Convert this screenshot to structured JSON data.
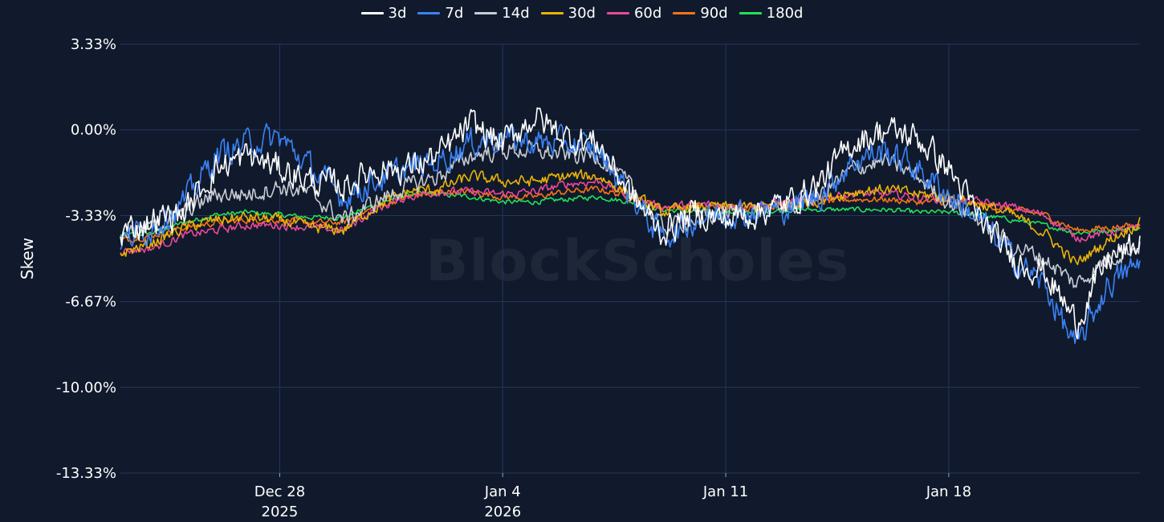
{
  "watermark": "BlockScholes",
  "chart_data": {
    "type": "line",
    "title": "",
    "xlabel": "",
    "ylabel": "Skew",
    "x_range": [
      "2025-12-23",
      "2026-01-24"
    ],
    "ylim": [
      -13.33,
      3.33
    ],
    "y_ticks": [
      3.33,
      0.0,
      -3.33,
      -6.67,
      -10.0,
      -13.33
    ],
    "y_tick_labels": [
      "3.33%",
      "0.00%",
      "-3.33%",
      "-6.67%",
      "-10.00%",
      "-13.33%"
    ],
    "x_ticks": [
      {
        "date": "2025-12-28",
        "label": "Dec 28",
        "sublabel": "2025"
      },
      {
        "date": "2026-01-04",
        "label": "Jan 4",
        "sublabel": "2026"
      },
      {
        "date": "2026-01-11",
        "label": "Jan 11",
        "sublabel": ""
      },
      {
        "date": "2026-01-18",
        "label": "Jan 18",
        "sublabel": ""
      }
    ],
    "grid": true,
    "legend_position": "top-center",
    "series": [
      {
        "name": "3d",
        "color": "#ffffff",
        "noise": 0.9,
        "points": [
          [
            "2025-12-23",
            -4.0
          ],
          [
            "2025-12-24",
            -3.5
          ],
          [
            "2025-12-25",
            -3.2
          ],
          [
            "2025-12-26",
            -1.5
          ],
          [
            "2025-12-27",
            -1.0
          ],
          [
            "2025-12-28",
            -1.5
          ],
          [
            "2025-12-29",
            -2.0
          ],
          [
            "2025-12-30",
            -2.2
          ],
          [
            "2025-12-31",
            -1.5
          ],
          [
            "2026-01-01",
            -1.5
          ],
          [
            "2026-01-02",
            -1.0
          ],
          [
            "2026-01-03",
            0.2
          ],
          [
            "2026-01-04",
            -0.5
          ],
          [
            "2026-01-05",
            0.5
          ],
          [
            "2026-01-06",
            -0.3
          ],
          [
            "2026-01-07",
            -0.5
          ],
          [
            "2026-01-08",
            -2.5
          ],
          [
            "2026-01-09",
            -4.0
          ],
          [
            "2026-01-10",
            -3.2
          ],
          [
            "2026-01-11",
            -3.5
          ],
          [
            "2026-01-12",
            -3.2
          ],
          [
            "2026-01-13",
            -2.8
          ],
          [
            "2026-01-14",
            -2.0
          ],
          [
            "2026-01-15",
            -0.5
          ],
          [
            "2026-01-16",
            0.0
          ],
          [
            "2026-01-17",
            -0.3
          ],
          [
            "2026-01-18",
            -1.5
          ],
          [
            "2026-01-19",
            -3.5
          ],
          [
            "2026-01-20",
            -5.0
          ],
          [
            "2026-01-21",
            -5.5
          ],
          [
            "2026-01-22",
            -7.5
          ],
          [
            "2026-01-23",
            -5.0
          ],
          [
            "2026-01-24",
            -4.5
          ]
        ]
      },
      {
        "name": "7d",
        "color": "#3b82f6",
        "noise": 0.85,
        "points": [
          [
            "2025-12-23",
            -4.3
          ],
          [
            "2025-12-24",
            -3.8
          ],
          [
            "2025-12-25",
            -2.8
          ],
          [
            "2025-12-26",
            -1.0
          ],
          [
            "2025-12-27",
            -0.5
          ],
          [
            "2025-12-28",
            -0.3
          ],
          [
            "2025-12-29",
            -1.5
          ],
          [
            "2025-12-30",
            -2.6
          ],
          [
            "2025-12-31",
            -2.0
          ],
          [
            "2026-01-01",
            -1.5
          ],
          [
            "2026-01-02",
            -1.2
          ],
          [
            "2026-01-03",
            -0.5
          ],
          [
            "2026-01-04",
            -0.3
          ],
          [
            "2026-01-05",
            -0.5
          ],
          [
            "2026-01-06",
            -0.5
          ],
          [
            "2026-01-07",
            -0.8
          ],
          [
            "2026-01-08",
            -2.5
          ],
          [
            "2026-01-09",
            -4.2
          ],
          [
            "2026-01-10",
            -3.5
          ],
          [
            "2026-01-11",
            -3.2
          ],
          [
            "2026-01-12",
            -3.2
          ],
          [
            "2026-01-13",
            -3.0
          ],
          [
            "2026-01-14",
            -2.5
          ],
          [
            "2026-01-15",
            -1.2
          ],
          [
            "2026-01-16",
            -0.8
          ],
          [
            "2026-01-17",
            -1.5
          ],
          [
            "2026-01-18",
            -2.5
          ],
          [
            "2026-01-19",
            -3.5
          ],
          [
            "2026-01-20",
            -5.0
          ],
          [
            "2026-01-21",
            -6.0
          ],
          [
            "2026-01-22",
            -8.5
          ],
          [
            "2026-01-23",
            -6.0
          ],
          [
            "2026-01-24",
            -5.2
          ]
        ]
      },
      {
        "name": "14d",
        "color": "#c8ccd4",
        "noise": 0.55,
        "points": [
          [
            "2025-12-23",
            -4.0
          ],
          [
            "2025-12-24",
            -3.8
          ],
          [
            "2025-12-25",
            -3.2
          ],
          [
            "2025-12-26",
            -2.5
          ],
          [
            "2025-12-27",
            -2.5
          ],
          [
            "2025-12-28",
            -2.2
          ],
          [
            "2025-12-29",
            -2.5
          ],
          [
            "2025-12-30",
            -3.5
          ],
          [
            "2025-12-31",
            -2.8
          ],
          [
            "2026-01-01",
            -2.2
          ],
          [
            "2026-01-02",
            -1.8
          ],
          [
            "2026-01-03",
            -1.0
          ],
          [
            "2026-01-04",
            -0.8
          ],
          [
            "2026-01-05",
            -0.8
          ],
          [
            "2026-01-06",
            -1.0
          ],
          [
            "2026-01-07",
            -1.0
          ],
          [
            "2026-01-08",
            -2.2
          ],
          [
            "2026-01-09",
            -3.8
          ],
          [
            "2026-01-10",
            -3.5
          ],
          [
            "2026-01-11",
            -3.2
          ],
          [
            "2026-01-12",
            -3.2
          ],
          [
            "2026-01-13",
            -3.0
          ],
          [
            "2026-01-14",
            -2.5
          ],
          [
            "2026-01-15",
            -1.5
          ],
          [
            "2026-01-16",
            -1.2
          ],
          [
            "2026-01-17",
            -1.8
          ],
          [
            "2026-01-18",
            -2.8
          ],
          [
            "2026-01-19",
            -3.5
          ],
          [
            "2026-01-20",
            -4.5
          ],
          [
            "2026-01-21",
            -5.0
          ],
          [
            "2026-01-22",
            -6.0
          ],
          [
            "2026-01-23",
            -5.0
          ],
          [
            "2026-01-24",
            -4.5
          ]
        ]
      },
      {
        "name": "30d",
        "color": "#eab308",
        "noise": 0.35,
        "points": [
          [
            "2025-12-23",
            -4.8
          ],
          [
            "2025-12-24",
            -4.4
          ],
          [
            "2025-12-25",
            -3.8
          ],
          [
            "2025-12-26",
            -3.5
          ],
          [
            "2025-12-27",
            -3.4
          ],
          [
            "2025-12-28",
            -3.5
          ],
          [
            "2025-12-29",
            -3.8
          ],
          [
            "2025-12-30",
            -3.9
          ],
          [
            "2025-12-31",
            -3.0
          ],
          [
            "2026-01-01",
            -2.4
          ],
          [
            "2026-01-02",
            -2.3
          ],
          [
            "2026-01-03",
            -1.8
          ],
          [
            "2026-01-04",
            -2.0
          ],
          [
            "2026-01-05",
            -2.0
          ],
          [
            "2026-01-06",
            -1.8
          ],
          [
            "2026-01-07",
            -1.8
          ],
          [
            "2026-01-08",
            -2.5
          ],
          [
            "2026-01-09",
            -3.2
          ],
          [
            "2026-01-10",
            -3.0
          ],
          [
            "2026-01-11",
            -3.0
          ],
          [
            "2026-01-12",
            -3.0
          ],
          [
            "2026-01-13",
            -2.9
          ],
          [
            "2026-01-14",
            -2.7
          ],
          [
            "2026-01-15",
            -2.4
          ],
          [
            "2026-01-16",
            -2.3
          ],
          [
            "2026-01-17",
            -2.5
          ],
          [
            "2026-01-18",
            -2.6
          ],
          [
            "2026-01-19",
            -2.9
          ],
          [
            "2026-01-20",
            -3.3
          ],
          [
            "2026-01-21",
            -4.0
          ],
          [
            "2026-01-22",
            -5.2
          ],
          [
            "2026-01-23",
            -4.3
          ],
          [
            "2026-01-24",
            -3.6
          ]
        ]
      },
      {
        "name": "60d",
        "color": "#ec4899",
        "noise": 0.25,
        "points": [
          [
            "2025-12-23",
            -4.7
          ],
          [
            "2025-12-24",
            -4.6
          ],
          [
            "2025-12-25",
            -4.1
          ],
          [
            "2025-12-26",
            -3.9
          ],
          [
            "2025-12-27",
            -3.7
          ],
          [
            "2025-12-28",
            -3.7
          ],
          [
            "2025-12-29",
            -3.8
          ],
          [
            "2025-12-30",
            -3.9
          ],
          [
            "2025-12-31",
            -3.1
          ],
          [
            "2026-01-01",
            -2.6
          ],
          [
            "2026-01-02",
            -2.4
          ],
          [
            "2026-01-03",
            -2.4
          ],
          [
            "2026-01-04",
            -2.5
          ],
          [
            "2026-01-05",
            -2.4
          ],
          [
            "2026-01-06",
            -2.1
          ],
          [
            "2026-01-07",
            -2.0
          ],
          [
            "2026-01-08",
            -2.6
          ],
          [
            "2026-01-09",
            -3.0
          ],
          [
            "2026-01-10",
            -2.9
          ],
          [
            "2026-01-11",
            -2.9
          ],
          [
            "2026-01-12",
            -2.9
          ],
          [
            "2026-01-13",
            -2.8
          ],
          [
            "2026-01-14",
            -2.6
          ],
          [
            "2026-01-15",
            -2.5
          ],
          [
            "2026-01-16",
            -2.5
          ],
          [
            "2026-01-17",
            -2.6
          ],
          [
            "2026-01-18",
            -2.7
          ],
          [
            "2026-01-19",
            -2.8
          ],
          [
            "2026-01-20",
            -3.0
          ],
          [
            "2026-01-21",
            -3.3
          ],
          [
            "2026-01-22",
            -4.2
          ],
          [
            "2026-01-23",
            -4.0
          ],
          [
            "2026-01-24",
            -3.8
          ]
        ]
      },
      {
        "name": "90d",
        "color": "#f97316",
        "noise": 0.2,
        "points": [
          [
            "2025-12-23",
            -4.3
          ],
          [
            "2025-12-24",
            -4.1
          ],
          [
            "2025-12-25",
            -3.8
          ],
          [
            "2025-12-26",
            -3.6
          ],
          [
            "2025-12-27",
            -3.5
          ],
          [
            "2025-12-28",
            -3.5
          ],
          [
            "2025-12-29",
            -3.6
          ],
          [
            "2025-12-30",
            -3.6
          ],
          [
            "2025-12-31",
            -3.0
          ],
          [
            "2026-01-01",
            -2.6
          ],
          [
            "2026-01-02",
            -2.4
          ],
          [
            "2026-01-03",
            -2.4
          ],
          [
            "2026-01-04",
            -2.6
          ],
          [
            "2026-01-05",
            -2.6
          ],
          [
            "2026-01-06",
            -2.4
          ],
          [
            "2026-01-07",
            -2.3
          ],
          [
            "2026-01-08",
            -2.6
          ],
          [
            "2026-01-09",
            -3.0
          ],
          [
            "2026-01-10",
            -3.0
          ],
          [
            "2026-01-11",
            -3.0
          ],
          [
            "2026-01-12",
            -3.0
          ],
          [
            "2026-01-13",
            -2.9
          ],
          [
            "2026-01-14",
            -2.8
          ],
          [
            "2026-01-15",
            -2.7
          ],
          [
            "2026-01-16",
            -2.7
          ],
          [
            "2026-01-17",
            -2.8
          ],
          [
            "2026-01-18",
            -2.8
          ],
          [
            "2026-01-19",
            -2.9
          ],
          [
            "2026-01-20",
            -3.1
          ],
          [
            "2026-01-21",
            -3.3
          ],
          [
            "2026-01-22",
            -3.9
          ],
          [
            "2026-01-23",
            -3.8
          ],
          [
            "2026-01-24",
            -3.7
          ]
        ]
      },
      {
        "name": "180d",
        "color": "#22e05a",
        "noise": 0.15,
        "points": [
          [
            "2025-12-23",
            -4.1
          ],
          [
            "2025-12-24",
            -4.0
          ],
          [
            "2025-12-25",
            -3.6
          ],
          [
            "2025-12-26",
            -3.3
          ],
          [
            "2025-12-27",
            -3.2
          ],
          [
            "2025-12-28",
            -3.3
          ],
          [
            "2025-12-29",
            -3.4
          ],
          [
            "2025-12-30",
            -3.4
          ],
          [
            "2025-12-31",
            -2.9
          ],
          [
            "2026-01-01",
            -2.5
          ],
          [
            "2026-01-02",
            -2.5
          ],
          [
            "2026-01-03",
            -2.6
          ],
          [
            "2026-01-04",
            -2.8
          ],
          [
            "2026-01-05",
            -2.8
          ],
          [
            "2026-01-06",
            -2.7
          ],
          [
            "2026-01-07",
            -2.6
          ],
          [
            "2026-01-08",
            -2.8
          ],
          [
            "2026-01-09",
            -3.1
          ],
          [
            "2026-01-10",
            -3.2
          ],
          [
            "2026-01-11",
            -3.2
          ],
          [
            "2026-01-12",
            -3.2
          ],
          [
            "2026-01-13",
            -3.1
          ],
          [
            "2026-01-14",
            -3.1
          ],
          [
            "2026-01-15",
            -3.1
          ],
          [
            "2026-01-16",
            -3.1
          ],
          [
            "2026-01-17",
            -3.2
          ],
          [
            "2026-01-18",
            -3.2
          ],
          [
            "2026-01-19",
            -3.3
          ],
          [
            "2026-01-20",
            -3.5
          ],
          [
            "2026-01-21",
            -3.7
          ],
          [
            "2026-01-22",
            -4.0
          ],
          [
            "2026-01-23",
            -3.9
          ],
          [
            "2026-01-24",
            -3.8
          ]
        ]
      }
    ]
  }
}
